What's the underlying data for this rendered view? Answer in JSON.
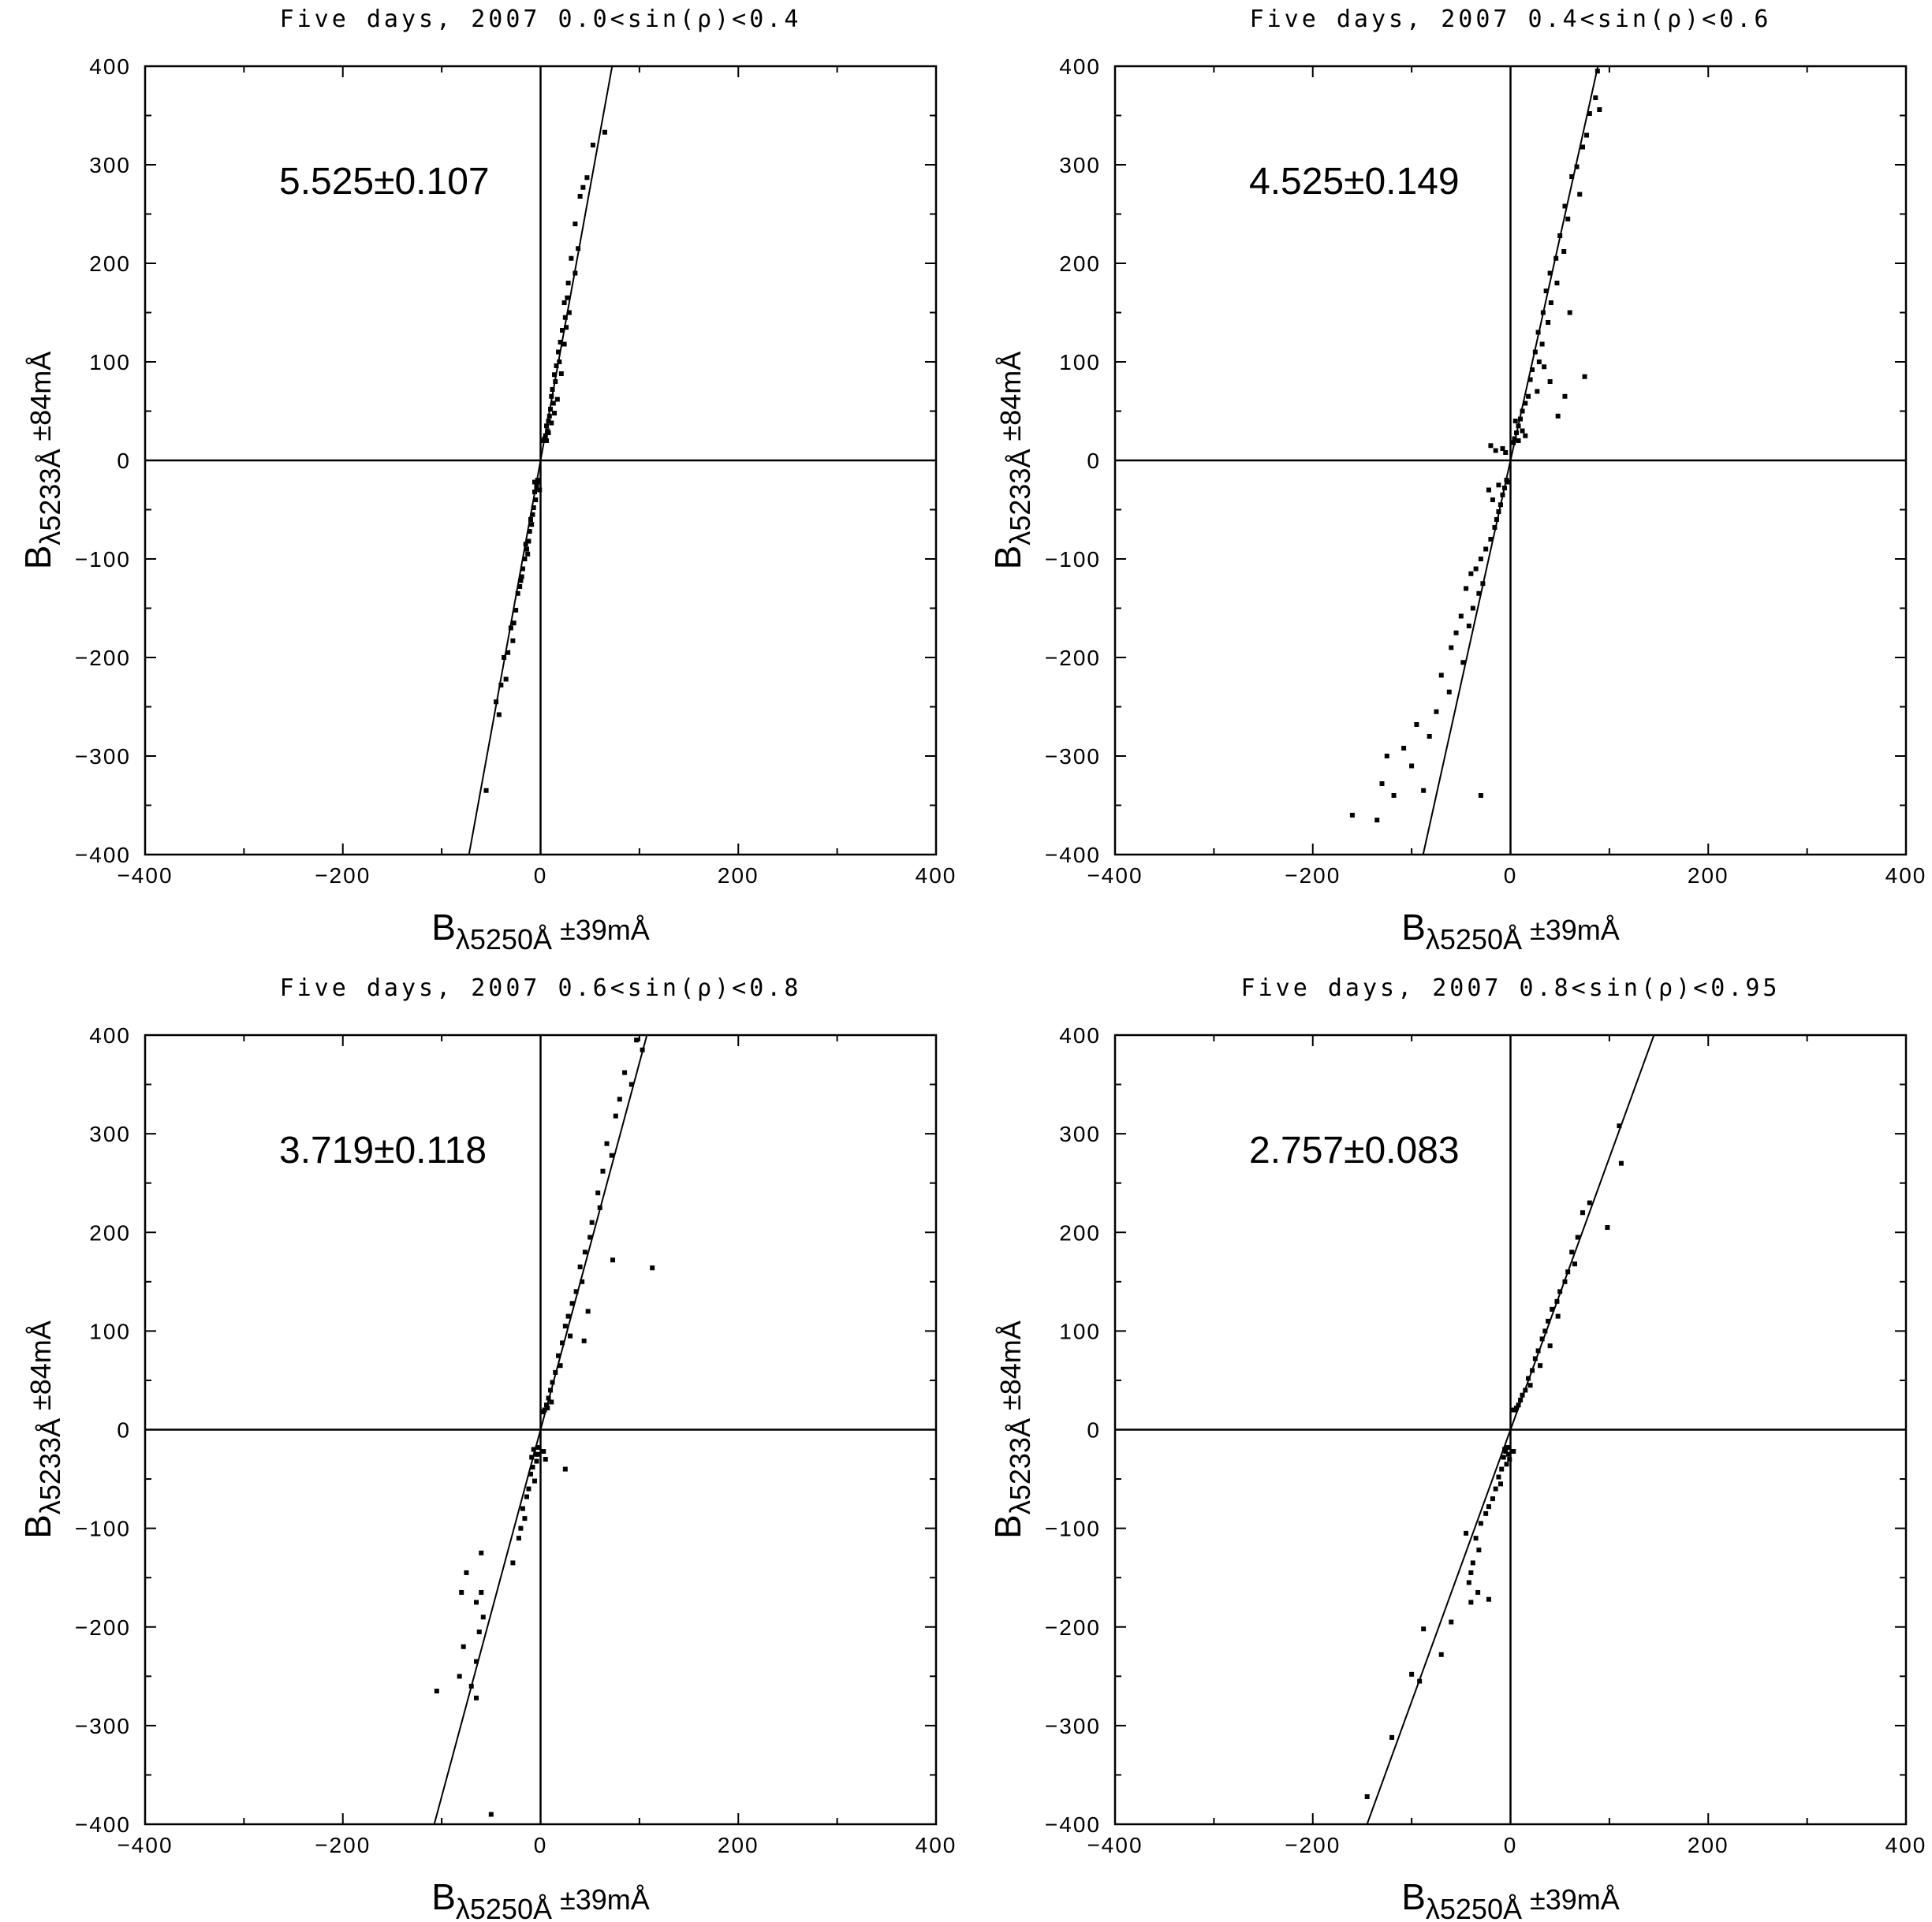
{
  "figure": {
    "x_label": {
      "main": "B",
      "sub": "λ5250Å",
      "suffix": " ±39mÅ"
    },
    "y_label": {
      "main": "B",
      "sub": "λ5233Å",
      "suffix": " ±84mÅ"
    }
  },
  "chart_data": [
    {
      "type": "scatter",
      "title": "Five  days,  2007  0.0<sin(ρ)<0.4",
      "annotation": "5.525±0.107",
      "xlabel": "Bλ5250Å ±39mÅ",
      "ylabel": "Bλ5233Å ±84mÅ",
      "xlim": [
        -400,
        400
      ],
      "ylim": [
        -400,
        400
      ],
      "xticks": [
        "−400",
        "−200",
        "0",
        "200",
        "400"
      ],
      "yticks": [
        "−400",
        "−300",
        "−200",
        "−100",
        "0",
        "100",
        "200",
        "300",
        "400"
      ],
      "fit": {
        "slope": 5.525,
        "intercept": 0
      },
      "points": [
        [
          65,
          333
        ],
        [
          53,
          320
        ],
        [
          47,
          287
        ],
        [
          43,
          277
        ],
        [
          40,
          268
        ],
        [
          35,
          240
        ],
        [
          38,
          215
        ],
        [
          31,
          205
        ],
        [
          35,
          190
        ],
        [
          28,
          180
        ],
        [
          27,
          165
        ],
        [
          24,
          160
        ],
        [
          25,
          145
        ],
        [
          22,
          132
        ],
        [
          26,
          135
        ],
        [
          20,
          120
        ],
        [
          18,
          110
        ],
        [
          19,
          100
        ],
        [
          16,
          96
        ],
        [
          14,
          87
        ],
        [
          15,
          80
        ],
        [
          12,
          72
        ],
        [
          11,
          65
        ],
        [
          13,
          58
        ],
        [
          10,
          52
        ],
        [
          9,
          45
        ],
        [
          8,
          40
        ],
        [
          6,
          35
        ],
        [
          7,
          30
        ],
        [
          5,
          25
        ],
        [
          4,
          22
        ],
        [
          8,
          28
        ],
        [
          11,
          38
        ],
        [
          14,
          48
        ],
        [
          17,
          62
        ],
        [
          21,
          88
        ],
        [
          24,
          118
        ],
        [
          29,
          150
        ],
        [
          3,
          20
        ],
        [
          6,
          20
        ],
        [
          -3,
          -20
        ],
        [
          -4,
          -25
        ],
        [
          -6,
          -32
        ],
        [
          -5,
          -40
        ],
        [
          -7,
          -48
        ],
        [
          -8,
          -55
        ],
        [
          -9,
          -65
        ],
        [
          -11,
          -72
        ],
        [
          -12,
          -82
        ],
        [
          -14,
          -90
        ],
        [
          -16,
          -100
        ],
        [
          -18,
          -110
        ],
        [
          -19,
          -118
        ],
        [
          -21,
          -128
        ],
        [
          -23,
          -135
        ],
        [
          -25,
          -152
        ],
        [
          -27,
          -165
        ],
        [
          -30,
          -170
        ],
        [
          -28,
          -183
        ],
        [
          -33,
          -195
        ],
        [
          -37,
          -200
        ],
        [
          -35,
          -222
        ],
        [
          -40,
          -228
        ],
        [
          -45,
          -245
        ],
        [
          -42,
          -258
        ],
        [
          -55,
          -335
        ],
        [
          -2,
          -22
        ],
        [
          -4,
          -28
        ],
        [
          -6,
          -22
        ],
        [
          -1,
          -30
        ],
        [
          -10,
          -60
        ],
        [
          -15,
          -85
        ],
        [
          -20,
          -122
        ],
        [
          -13,
          -95
        ]
      ]
    },
    {
      "type": "scatter",
      "title": "Five  days,  2007  0.4<sin(ρ)<0.6",
      "annotation": "4.525±0.149",
      "xlabel": "Bλ5250Å ±39mÅ",
      "ylabel": "Bλ5233Å ±84mÅ",
      "xlim": [
        -400,
        400
      ],
      "ylim": [
        -400,
        400
      ],
      "xticks": [
        "−400",
        "−200",
        "0",
        "200",
        "400"
      ],
      "yticks": [
        "−400",
        "−300",
        "−200",
        "−100",
        "0",
        "100",
        "200",
        "300",
        "400"
      ],
      "fit": {
        "slope": 4.525,
        "intercept": 0
      },
      "points": [
        [
          88,
          395
        ],
        [
          86,
          368
        ],
        [
          80,
          352
        ],
        [
          77,
          330
        ],
        [
          73,
          318
        ],
        [
          90,
          356
        ],
        [
          67,
          298
        ],
        [
          62,
          288
        ],
        [
          70,
          270
        ],
        [
          55,
          258
        ],
        [
          58,
          245
        ],
        [
          50,
          228
        ],
        [
          54,
          212
        ],
        [
          46,
          205
        ],
        [
          40,
          190
        ],
        [
          47,
          180
        ],
        [
          36,
          172
        ],
        [
          41,
          160
        ],
        [
          33,
          150
        ],
        [
          38,
          140
        ],
        [
          60,
          150
        ],
        [
          28,
          130
        ],
        [
          32,
          118
        ],
        [
          25,
          110
        ],
        [
          29,
          100
        ],
        [
          22,
          92
        ],
        [
          34,
          95
        ],
        [
          20,
          82
        ],
        [
          40,
          80
        ],
        [
          75,
          85
        ],
        [
          27,
          70
        ],
        [
          18,
          65
        ],
        [
          55,
          65
        ],
        [
          15,
          58
        ],
        [
          48,
          45
        ],
        [
          12,
          50
        ],
        [
          10,
          42
        ],
        [
          8,
          35
        ],
        [
          6,
          28
        ],
        [
          4,
          22
        ],
        [
          3,
          18
        ],
        [
          -4,
          -20
        ],
        [
          -6,
          -28
        ],
        [
          -8,
          -35
        ],
        [
          -10,
          -45
        ],
        [
          -12,
          -52
        ],
        [
          -14,
          -60
        ],
        [
          -16,
          -68
        ],
        [
          -20,
          -80
        ],
        [
          -25,
          -90
        ],
        [
          -30,
          -100
        ],
        [
          -35,
          -110
        ],
        [
          -40,
          -115
        ],
        [
          -28,
          -125
        ],
        [
          -45,
          -130
        ],
        [
          -32,
          -135
        ],
        [
          -38,
          -150
        ],
        [
          -50,
          -158
        ],
        [
          -42,
          -168
        ],
        [
          -55,
          -175
        ],
        [
          -60,
          -190
        ],
        [
          -48,
          -205
        ],
        [
          -70,
          -218
        ],
        [
          -62,
          -235
        ],
        [
          -75,
          -255
        ],
        [
          -95,
          -268
        ],
        [
          -82,
          -280
        ],
        [
          -108,
          -292
        ],
        [
          -125,
          -300
        ],
        [
          -100,
          -310
        ],
        [
          -130,
          -328
        ],
        [
          -88,
          -335
        ],
        [
          -118,
          -340
        ],
        [
          -30,
          -340
        ],
        [
          -135,
          -365
        ],
        [
          -160,
          -360
        ],
        [
          -22,
          -30
        ],
        [
          -18,
          -40
        ],
        [
          -12,
          -25
        ],
        [
          -2,
          -22
        ],
        [
          8,
          20
        ],
        [
          12,
          30
        ],
        [
          15,
          25
        ],
        [
          5,
          40
        ],
        [
          -5,
          8
        ],
        [
          -15,
          10
        ],
        [
          -8,
          12
        ],
        [
          -20,
          15
        ]
      ]
    },
    {
      "type": "scatter",
      "title": "Five  days,  2007  0.6<sin(ρ)<0.8",
      "annotation": "3.719±0.118",
      "xlabel": "Bλ5250Å ±39mÅ",
      "ylabel": "Bλ5233Å ±84mÅ",
      "xlim": [
        -400,
        400
      ],
      "ylim": [
        -400,
        400
      ],
      "xticks": [
        "−400",
        "−200",
        "0",
        "200",
        "400"
      ],
      "yticks": [
        "−400",
        "−300",
        "−200",
        "−100",
        "0",
        "100",
        "200",
        "300",
        "400"
      ],
      "fit": {
        "slope": 3.719,
        "intercept": 0
      },
      "points": [
        [
          97,
          395
        ],
        [
          103,
          385
        ],
        [
          85,
          362
        ],
        [
          92,
          350
        ],
        [
          80,
          335
        ],
        [
          76,
          318
        ],
        [
          67,
          290
        ],
        [
          72,
          278
        ],
        [
          63,
          262
        ],
        [
          58,
          240
        ],
        [
          60,
          225
        ],
        [
          52,
          210
        ],
        [
          50,
          195
        ],
        [
          45,
          180
        ],
        [
          73,
          172
        ],
        [
          113,
          164
        ],
        [
          40,
          165
        ],
        [
          42,
          150
        ],
        [
          36,
          140
        ],
        [
          32,
          128
        ],
        [
          48,
          120
        ],
        [
          28,
          115
        ],
        [
          25,
          105
        ],
        [
          30,
          95
        ],
        [
          44,
          90
        ],
        [
          22,
          88
        ],
        [
          18,
          75
        ],
        [
          20,
          65
        ],
        [
          15,
          58
        ],
        [
          12,
          48
        ],
        [
          10,
          40
        ],
        [
          8,
          32
        ],
        [
          6,
          25
        ],
        [
          4,
          20
        ],
        [
          2,
          18
        ],
        [
          7,
          22
        ],
        [
          11,
          28
        ],
        [
          -3,
          -18
        ],
        [
          -5,
          -25
        ],
        [
          -4,
          -32
        ],
        [
          -8,
          -38
        ],
        [
          -10,
          -45
        ],
        [
          -6,
          -52
        ],
        [
          -12,
          -60
        ],
        [
          -14,
          -68
        ],
        [
          -18,
          -80
        ],
        [
          -16,
          -90
        ],
        [
          -20,
          -100
        ],
        [
          -22,
          -110
        ],
        [
          -28,
          -135
        ],
        [
          -60,
          -125
        ],
        [
          -75,
          -145
        ],
        [
          -80,
          -165
        ],
        [
          -60,
          -165
        ],
        [
          -65,
          -175
        ],
        [
          -58,
          -190
        ],
        [
          -62,
          -205
        ],
        [
          -78,
          -220
        ],
        [
          -65,
          -235
        ],
        [
          -82,
          -250
        ],
        [
          -70,
          -260
        ],
        [
          -65,
          -272
        ],
        [
          -105,
          -265
        ],
        [
          -50,
          -390
        ],
        [
          25,
          -40
        ],
        [
          -2,
          -25
        ],
        [
          -7,
          -20
        ],
        [
          -9,
          -28
        ],
        [
          3,
          -22
        ],
        [
          5,
          -30
        ]
      ]
    },
    {
      "type": "scatter",
      "title": "Five  days,  2007  0.8<sin(ρ)<0.95",
      "annotation": "2.757±0.083",
      "xlabel": "Bλ5250Å ±39mÅ",
      "ylabel": "Bλ5233Å ±84mÅ",
      "xlim": [
        -400,
        400
      ],
      "ylim": [
        -400,
        400
      ],
      "xticks": [
        "−400",
        "−200",
        "0",
        "200",
        "400"
      ],
      "yticks": [
        "−400",
        "−300",
        "−200",
        "−100",
        "0",
        "100",
        "200",
        "300",
        "400"
      ],
      "fit": {
        "slope": 2.757,
        "intercept": 0
      },
      "points": [
        [
          110,
          308
        ],
        [
          112,
          270
        ],
        [
          80,
          230
        ],
        [
          73,
          220
        ],
        [
          98,
          205
        ],
        [
          68,
          195
        ],
        [
          62,
          180
        ],
        [
          65,
          168
        ],
        [
          58,
          160
        ],
        [
          55,
          150
        ],
        [
          50,
          140
        ],
        [
          47,
          130
        ],
        [
          42,
          122
        ],
        [
          48,
          115
        ],
        [
          38,
          110
        ],
        [
          35,
          100
        ],
        [
          32,
          92
        ],
        [
          40,
          85
        ],
        [
          28,
          80
        ],
        [
          25,
          72
        ],
        [
          30,
          65
        ],
        [
          22,
          60
        ],
        [
          18,
          52
        ],
        [
          20,
          45
        ],
        [
          15,
          40
        ],
        [
          12,
          35
        ],
        [
          10,
          30
        ],
        [
          8,
          25
        ],
        [
          6,
          22
        ],
        [
          4,
          20
        ],
        [
          2,
          20
        ],
        [
          -3,
          -18
        ],
        [
          -5,
          -22
        ],
        [
          -7,
          -28
        ],
        [
          -4,
          -35
        ],
        [
          -9,
          -40
        ],
        [
          -12,
          -48
        ],
        [
          -10,
          -55
        ],
        [
          -15,
          -60
        ],
        [
          -18,
          -70
        ],
        [
          -22,
          -78
        ],
        [
          -25,
          -85
        ],
        [
          -30,
          -95
        ],
        [
          -45,
          -105
        ],
        [
          -35,
          -110
        ],
        [
          -32,
          -122
        ],
        [
          -38,
          -135
        ],
        [
          -40,
          -145
        ],
        [
          -42,
          -155
        ],
        [
          -33,
          -165
        ],
        [
          -40,
          -175
        ],
        [
          -22,
          -172
        ],
        [
          -60,
          -195
        ],
        [
          -88,
          -202
        ],
        [
          -70,
          -228
        ],
        [
          -100,
          -248
        ],
        [
          -92,
          -255
        ],
        [
          -120,
          -312
        ],
        [
          -145,
          -372
        ],
        [
          -2,
          -25
        ],
        [
          -6,
          -20
        ],
        [
          -1,
          -30
        ],
        [
          3,
          -22
        ]
      ]
    }
  ]
}
